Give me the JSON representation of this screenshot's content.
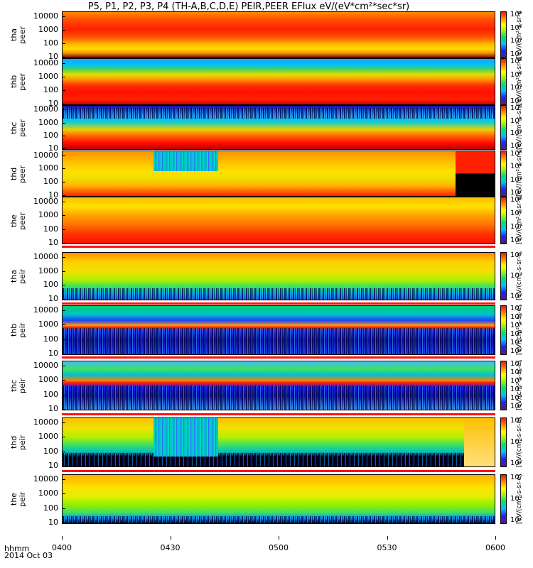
{
  "title": "P5, P1, P2, P3, P4 (TH-A,B,C,D,E) PEIR,PEER EFlux eV/(eV*cm²*sec*sr)",
  "colors": {
    "high": "#ff1a00",
    "mid": "#ffd400",
    "low": "#00d070",
    "min": "#1a1aff",
    "bg": "#ffffff"
  },
  "chart_data": {
    "type": "heatmap",
    "title": "P5, P1, P2, P3, P4 (TH-A,B,C,D,E) PEIR,PEER EFlux eV/(eV*cm²*sec*sr)",
    "x_axis": {
      "label": "hhmm",
      "date": "2014 Oct 03",
      "ticks": [
        "0400",
        "0430",
        "0500",
        "0530",
        "0600"
      ],
      "range": [
        "0400",
        "0600"
      ]
    },
    "y_axis": {
      "scale": "log",
      "ticks": [
        "10",
        "100",
        "1000",
        "10000"
      ],
      "unit": "eV"
    },
    "colorbar_label": "[eV/(cm²-s-sr-eV)]",
    "panels": [
      {
        "line1": "tha",
        "line2": "peer",
        "cbar_ticks": [
          "10⁸",
          "10⁶",
          "10⁴",
          "10²"
        ]
      },
      {
        "line1": "thb",
        "line2": "peer",
        "cbar_ticks": [
          "10⁸",
          "10⁶",
          "10⁴",
          "10²"
        ]
      },
      {
        "line1": "thc",
        "line2": "peer",
        "cbar_ticks": [
          "10⁸",
          "10⁶",
          "10⁴",
          "10²"
        ]
      },
      {
        "line1": "thd",
        "line2": "peer",
        "cbar_ticks": [
          "10⁸",
          "10⁶",
          "10⁴",
          "10²"
        ]
      },
      {
        "line1": "the",
        "line2": "peer",
        "cbar_ticks": [
          "10⁸",
          "10⁶",
          "10⁴",
          "10²"
        ]
      },
      {
        "line1": "tha",
        "line2": "peir",
        "cbar_ticks": [
          "10⁶",
          "10⁴",
          "10²"
        ]
      },
      {
        "line1": "thb",
        "line2": "peir",
        "cbar_ticks": [
          "10⁷",
          "10⁶",
          "10⁵",
          "10⁴",
          "10³",
          "10²"
        ]
      },
      {
        "line1": "thc",
        "line2": "peir",
        "cbar_ticks": [
          "10⁷",
          "10⁶",
          "10⁵",
          "10⁴",
          "10³",
          "10²"
        ]
      },
      {
        "line1": "thd",
        "line2": "peir",
        "cbar_ticks": [
          "10⁶",
          "10⁴",
          "10²"
        ]
      },
      {
        "line1": "the",
        "line2": "peir",
        "cbar_ticks": [
          "10⁶",
          "10⁴",
          "10²"
        ]
      }
    ]
  }
}
